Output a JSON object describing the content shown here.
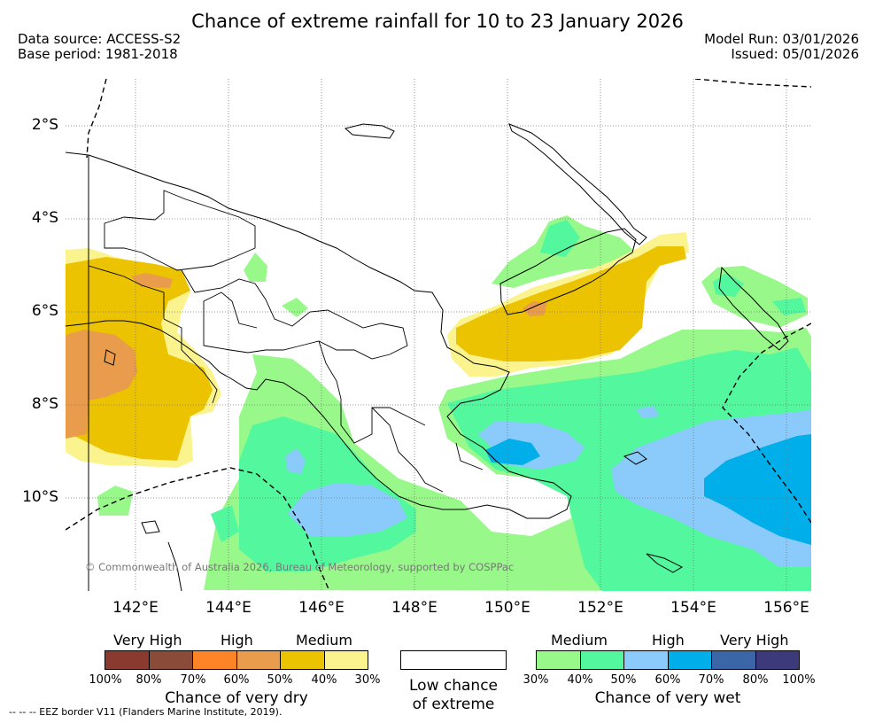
{
  "title": "Chance of extreme rainfall for 10 to 23 January 2026",
  "header": {
    "data_source": "Data source: ACCESS-S2",
    "base_period": "Base period: 1981-2018",
    "model_run": "Model Run: 03/01/2026",
    "issued": "Issued: 05/01/2026"
  },
  "map": {
    "latitude_labels": [
      "2°S",
      "4°S",
      "6°S",
      "8°S",
      "10°S"
    ],
    "longitude_labels": [
      "142°E",
      "144°E",
      "146°E",
      "148°E",
      "150°E",
      "152°E",
      "154°E",
      "156°E"
    ],
    "copyright": "© Commonwealth of Australia 2026, Bureau of Meteorology, supported by COSPPac"
  },
  "legend": {
    "dry": {
      "headers": [
        "Very High",
        "High",
        "Medium"
      ],
      "ticks": [
        "100%",
        "80%",
        "70%",
        "60%",
        "50%",
        "40%",
        "30%"
      ],
      "caption": "Chance of very dry",
      "colors": [
        "#8b3a2f",
        "#8a4b38",
        "#ff8427",
        "#e99c4b",
        "#ecc300",
        "#fbf38d"
      ]
    },
    "neutral": {
      "line1": "Low chance",
      "line2": "of extreme",
      "color": "#ffffff"
    },
    "wet": {
      "headers": [
        "Medium",
        "High",
        "Very High"
      ],
      "ticks": [
        "30%",
        "40%",
        "50%",
        "60%",
        "70%",
        "80%",
        "100%"
      ],
      "caption": "Chance of very wet",
      "colors": [
        "#98f98a",
        "#52f79e",
        "#8acbfb",
        "#00aee9",
        "#3a65a6",
        "#3c3a7a"
      ]
    }
  },
  "footnote": "--  --  -- EEZ border V11 (Flanders Marine Institute, 2019)."
}
